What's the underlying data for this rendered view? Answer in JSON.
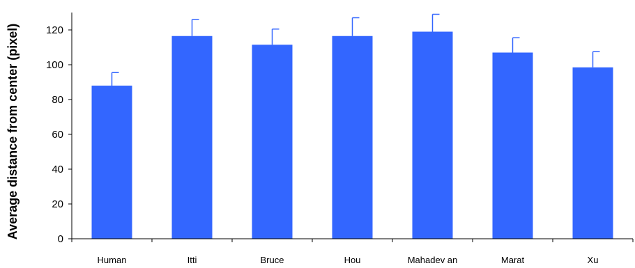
{
  "chart_data": {
    "type": "bar",
    "title": "",
    "xlabel": "",
    "ylabel": "Average distance from center (pixel)",
    "categories": [
      "Human",
      "Itti",
      "Bruce",
      "Hou",
      "Mahadev an",
      "Marat",
      "Xu"
    ],
    "values": [
      88,
      116.5,
      111.5,
      116.5,
      119,
      107,
      98.5
    ],
    "errors": [
      7.5,
      9.5,
      9,
      10.5,
      10,
      8.5,
      9
    ],
    "ylim": [
      0,
      130
    ],
    "yticks": [
      0,
      20,
      40,
      60,
      80,
      100,
      120
    ],
    "grid": false,
    "legend": "none",
    "bar_color": "#3366FF",
    "axis_color": "#000000"
  }
}
